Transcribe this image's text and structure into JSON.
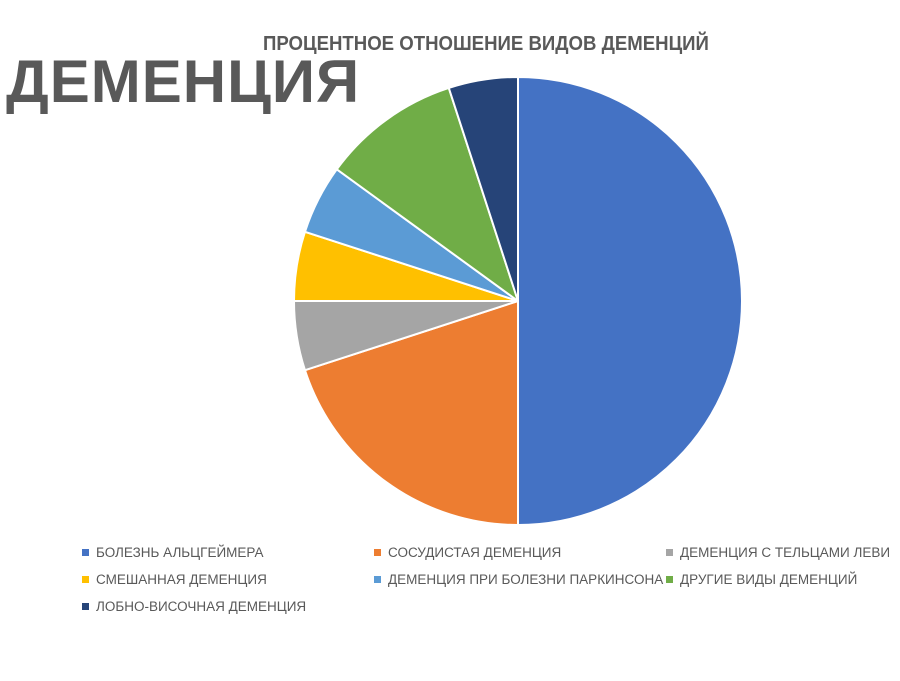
{
  "page": {
    "heading": "ДЕМЕНЦИЯ"
  },
  "chart_data": {
    "type": "pie",
    "title": "ПРОЦЕНТНОЕ ОТНОШЕНИЕ ВИДОВ ДЕМЕНЦИЙ",
    "legend_position": "bottom",
    "start_angle_deg": 0,
    "direction": "clockwise",
    "slices": [
      {
        "label": "БОЛЕЗНЬ АЛЬЦГЕЙМЕРА",
        "value": 50,
        "color": "#4472C4"
      },
      {
        "label": "СОСУДИСТАЯ ДЕМЕНЦИЯ",
        "value": 20,
        "color": "#ED7D31"
      },
      {
        "label": "ДЕМЕНЦИЯ С ТЕЛЬЦАМИ ЛЕВИ",
        "value": 5,
        "color": "#A5A5A5"
      },
      {
        "label": "СМЕШАННАЯ ДЕМЕНЦИЯ",
        "value": 5,
        "color": "#FFC000"
      },
      {
        "label": "ДЕМЕНЦИЯ ПРИ БОЛЕЗНИ ПАРКИНСОНА",
        "value": 5,
        "color": "#5B9BD5"
      },
      {
        "label": "ДРУГИЕ ВИДЫ ДЕМЕНЦИЙ",
        "value": 10,
        "color": "#70AD47"
      },
      {
        "label": "ЛОБНО-ВИСОЧНАЯ ДЕМЕНЦИЯ",
        "value": 5,
        "color": "#264478"
      }
    ]
  }
}
